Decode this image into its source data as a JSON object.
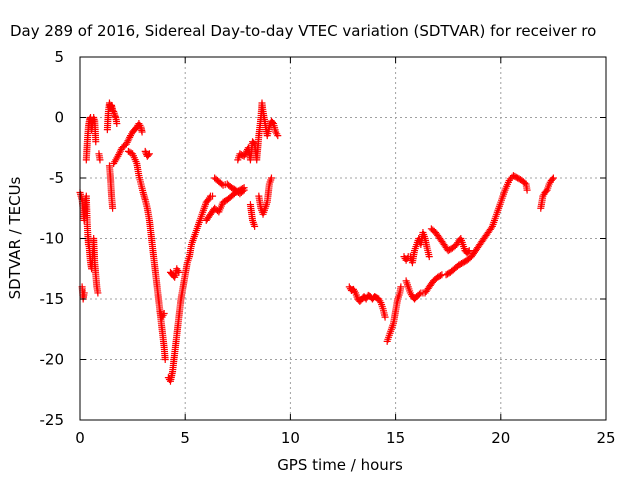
{
  "chart_data": {
    "type": "scatter",
    "title": "Day 289 of 2016, Sidereal Day-to-day VTEC variation (SDTVAR) for receiver ro",
    "xlabel": "GPS time / hours",
    "ylabel": "SDTVAR / TECUs",
    "xlim": [
      0,
      25
    ],
    "ylim": [
      -25,
      5
    ],
    "xticks": [
      0,
      5,
      10,
      15,
      20,
      25
    ],
    "yticks": [
      -25,
      -20,
      -15,
      -10,
      -5,
      0,
      5
    ],
    "grid": true,
    "marker": "+",
    "color": "#ff0000",
    "series": [
      {
        "name": "SDTVAR",
        "segments": [
          [
            [
              0.0,
              -6.2
            ],
            [
              0.1,
              -6.8
            ],
            [
              0.2,
              -8.5
            ],
            [
              0.25,
              -7.0
            ],
            [
              0.3,
              -6.5
            ],
            [
              0.35,
              -9.0
            ],
            [
              0.4,
              -10.5
            ]
          ],
          [
            [
              0.1,
              -14.0
            ],
            [
              0.15,
              -15.0
            ],
            [
              0.2,
              -14.5
            ]
          ],
          [
            [
              0.3,
              -3.5
            ],
            [
              0.35,
              -2.0
            ],
            [
              0.4,
              -0.8
            ],
            [
              0.45,
              -0.2
            ],
            [
              0.5,
              0.0
            ],
            [
              0.55,
              -1.0
            ],
            [
              0.6,
              -0.5
            ],
            [
              0.65,
              0.0
            ],
            [
              0.7,
              -0.3
            ],
            [
              0.75,
              -2.0
            ]
          ],
          [
            [
              0.4,
              -10.0
            ],
            [
              0.45,
              -11.0
            ],
            [
              0.5,
              -12.0
            ],
            [
              0.55,
              -12.5
            ],
            [
              0.6,
              -11.5
            ],
            [
              0.65,
              -10.0
            ],
            [
              0.7,
              -12.0
            ],
            [
              0.75,
              -13.0
            ],
            [
              0.8,
              -14.0
            ],
            [
              0.85,
              -14.5
            ]
          ],
          [
            [
              0.9,
              -3.0
            ],
            [
              0.95,
              -3.5
            ]
          ],
          [
            [
              1.3,
              -1.0
            ],
            [
              1.35,
              0.5
            ],
            [
              1.4,
              1.2
            ],
            [
              1.45,
              0.8
            ],
            [
              1.5,
              1.0
            ],
            [
              1.55,
              0.6
            ],
            [
              1.6,
              0.5
            ],
            [
              1.65,
              0.2
            ],
            [
              1.7,
              0.0
            ],
            [
              1.75,
              -0.5
            ]
          ],
          [
            [
              1.4,
              -4.0
            ],
            [
              1.45,
              -5.0
            ],
            [
              1.5,
              -6.5
            ],
            [
              1.55,
              -7.5
            ]
          ],
          [
            [
              1.6,
              -3.8
            ],
            [
              1.8,
              -3.2
            ],
            [
              2.0,
              -2.5
            ],
            [
              2.2,
              -2.2
            ],
            [
              2.4,
              -1.5
            ],
            [
              2.5,
              -1.2
            ],
            [
              2.6,
              -1.0
            ],
            [
              2.7,
              -0.8
            ],
            [
              2.8,
              -0.5
            ],
            [
              2.9,
              -0.8
            ],
            [
              2.95,
              -1.2
            ]
          ],
          [
            [
              2.3,
              -2.8
            ],
            [
              2.5,
              -3.0
            ],
            [
              2.7,
              -3.8
            ],
            [
              2.8,
              -4.8
            ],
            [
              2.9,
              -5.5
            ],
            [
              3.0,
              -6.2
            ],
            [
              3.1,
              -6.8
            ],
            [
              3.2,
              -7.5
            ],
            [
              3.3,
              -8.5
            ],
            [
              3.4,
              -10.0
            ],
            [
              3.5,
              -11.5
            ],
            [
              3.6,
              -13.0
            ],
            [
              3.7,
              -14.5
            ],
            [
              3.8,
              -16.0
            ],
            [
              3.9,
              -17.5
            ],
            [
              4.0,
              -19.0
            ],
            [
              4.05,
              -20.0
            ]
          ],
          [
            [
              3.1,
              -2.8
            ],
            [
              3.2,
              -3.2
            ],
            [
              3.3,
              -3.0
            ]
          ],
          [
            [
              3.8,
              -16.0
            ],
            [
              3.9,
              -16.5
            ],
            [
              4.0,
              -16.2
            ]
          ],
          [
            [
              4.2,
              -21.5
            ],
            [
              4.3,
              -21.8
            ],
            [
              4.4,
              -21.0
            ],
            [
              4.5,
              -19.5
            ],
            [
              4.6,
              -18.0
            ],
            [
              4.7,
              -16.5
            ],
            [
              4.8,
              -15.0
            ],
            [
              4.9,
              -14.0
            ],
            [
              5.0,
              -13.0
            ],
            [
              5.1,
              -12.0
            ],
            [
              5.2,
              -11.5
            ],
            [
              5.3,
              -10.5
            ],
            [
              5.4,
              -10.0
            ],
            [
              5.5,
              -9.5
            ],
            [
              5.6,
              -9.0
            ],
            [
              5.7,
              -8.5
            ],
            [
              5.8,
              -8.0
            ],
            [
              5.9,
              -7.5
            ],
            [
              6.0,
              -7.0
            ],
            [
              6.1,
              -6.8
            ],
            [
              6.2,
              -6.5
            ],
            [
              6.3,
              -6.5
            ]
          ],
          [
            [
              4.3,
              -12.8
            ],
            [
              4.4,
              -13.0
            ],
            [
              4.5,
              -13.2
            ],
            [
              4.6,
              -12.5
            ],
            [
              4.7,
              -12.8
            ]
          ],
          [
            [
              6.0,
              -8.5
            ],
            [
              6.2,
              -8.0
            ],
            [
              6.4,
              -7.5
            ],
            [
              6.6,
              -7.8
            ],
            [
              6.8,
              -7.0
            ],
            [
              7.0,
              -6.8
            ],
            [
              7.2,
              -6.5
            ],
            [
              7.4,
              -6.2
            ],
            [
              7.6,
              -6.0
            ],
            [
              7.8,
              -5.8
            ]
          ],
          [
            [
              6.4,
              -5.0
            ],
            [
              6.6,
              -5.3
            ],
            [
              6.8,
              -5.6
            ],
            [
              7.0,
              -5.5
            ],
            [
              7.2,
              -5.8
            ],
            [
              7.4,
              -6.0
            ],
            [
              7.6,
              -6.3
            ],
            [
              7.8,
              -6.0
            ]
          ],
          [
            [
              7.5,
              -3.5
            ],
            [
              7.6,
              -3.0
            ],
            [
              7.8,
              -3.2
            ],
            [
              8.0,
              -2.5
            ],
            [
              8.1,
              -3.5
            ],
            [
              8.2,
              -2.0
            ],
            [
              8.3,
              -2.2
            ],
            [
              8.4,
              -3.5
            ],
            [
              8.5,
              -1.5
            ],
            [
              8.6,
              0.0
            ],
            [
              8.65,
              1.2
            ],
            [
              8.7,
              0.5
            ],
            [
              8.8,
              -0.5
            ],
            [
              8.9,
              -1.5
            ],
            [
              9.0,
              -0.8
            ],
            [
              9.1,
              -0.3
            ],
            [
              9.2,
              -0.5
            ],
            [
              9.3,
              -1.2
            ],
            [
              9.4,
              -1.5
            ]
          ],
          [
            [
              8.1,
              -7.2
            ],
            [
              8.2,
              -8.5
            ],
            [
              8.3,
              -9.0
            ]
          ],
          [
            [
              8.5,
              -6.5
            ],
            [
              8.6,
              -7.5
            ],
            [
              8.7,
              -8.0
            ],
            [
              8.8,
              -7.5
            ],
            [
              8.9,
              -7.0
            ],
            [
              9.0,
              -5.5
            ],
            [
              9.1,
              -5.0
            ]
          ],
          [
            [
              12.8,
              -14.0
            ],
            [
              12.9,
              -14.3
            ],
            [
              13.0,
              -14.2
            ],
            [
              13.1,
              -14.5
            ],
            [
              13.2,
              -15.0
            ],
            [
              13.3,
              -15.2
            ],
            [
              13.4,
              -15.0
            ],
            [
              13.5,
              -14.8
            ],
            [
              13.6,
              -15.0
            ],
            [
              13.7,
              -14.7
            ],
            [
              13.8,
              -14.8
            ],
            [
              13.9,
              -15.0
            ],
            [
              14.0,
              -14.8
            ],
            [
              14.1,
              -14.9
            ],
            [
              14.2,
              -15.0
            ],
            [
              14.3,
              -15.3
            ],
            [
              14.4,
              -15.8
            ],
            [
              14.5,
              -16.5
            ]
          ],
          [
            [
              14.6,
              -18.5
            ],
            [
              14.7,
              -18.0
            ],
            [
              14.8,
              -17.5
            ],
            [
              14.9,
              -17.0
            ],
            [
              15.0,
              -16.0
            ],
            [
              15.1,
              -15.0
            ],
            [
              15.2,
              -14.5
            ],
            [
              15.25,
              -14.0
            ]
          ],
          [
            [
              15.4,
              -11.5
            ],
            [
              15.5,
              -11.8
            ],
            [
              15.6,
              -11.5
            ],
            [
              15.7,
              -11.5
            ],
            [
              15.8,
              -12.0
            ],
            [
              15.9,
              -11.0
            ],
            [
              16.0,
              -10.5
            ],
            [
              16.1,
              -10.0
            ],
            [
              16.2,
              -10.5
            ],
            [
              16.3,
              -9.5
            ],
            [
              16.4,
              -10.0
            ],
            [
              16.5,
              -10.8
            ],
            [
              16.6,
              -11.5
            ]
          ],
          [
            [
              15.5,
              -13.5
            ],
            [
              15.6,
              -14.0
            ],
            [
              15.7,
              -14.5
            ],
            [
              15.8,
              -14.8
            ],
            [
              15.9,
              -15.0
            ],
            [
              16.0,
              -14.8
            ],
            [
              16.2,
              -14.5
            ],
            [
              16.4,
              -14.5
            ],
            [
              16.6,
              -14.0
            ],
            [
              16.8,
              -13.5
            ],
            [
              17.0,
              -13.2
            ],
            [
              17.2,
              -13.0
            ]
          ],
          [
            [
              16.7,
              -9.2
            ],
            [
              16.9,
              -9.5
            ],
            [
              17.1,
              -10.0
            ],
            [
              17.3,
              -10.5
            ],
            [
              17.5,
              -11.0
            ],
            [
              17.7,
              -10.8
            ],
            [
              17.9,
              -10.5
            ],
            [
              18.0,
              -10.2
            ],
            [
              18.1,
              -10.0
            ],
            [
              18.2,
              -10.5
            ],
            [
              18.3,
              -11.0
            ],
            [
              18.4,
              -11.2
            ],
            [
              18.5,
              -11.0
            ]
          ],
          [
            [
              17.4,
              -13.0
            ],
            [
              17.6,
              -12.8
            ],
            [
              17.8,
              -12.5
            ],
            [
              18.0,
              -12.2
            ],
            [
              18.2,
              -12.0
            ],
            [
              18.4,
              -11.8
            ],
            [
              18.6,
              -11.5
            ],
            [
              18.8,
              -11.0
            ],
            [
              19.0,
              -10.5
            ],
            [
              19.2,
              -10.0
            ],
            [
              19.4,
              -9.5
            ],
            [
              19.6,
              -9.0
            ],
            [
              19.8,
              -8.0
            ],
            [
              20.0,
              -7.0
            ],
            [
              20.2,
              -6.0
            ],
            [
              20.4,
              -5.2
            ],
            [
              20.6,
              -4.8
            ],
            [
              20.8,
              -5.0
            ],
            [
              21.0,
              -5.2
            ],
            [
              21.2,
              -5.5
            ],
            [
              21.25,
              -6.0
            ]
          ],
          [
            [
              21.9,
              -7.5
            ],
            [
              22.0,
              -6.5
            ],
            [
              22.1,
              -6.2
            ],
            [
              22.2,
              -6.0
            ],
            [
              22.3,
              -5.5
            ],
            [
              22.4,
              -5.2
            ],
            [
              22.5,
              -5.0
            ]
          ]
        ]
      }
    ]
  }
}
